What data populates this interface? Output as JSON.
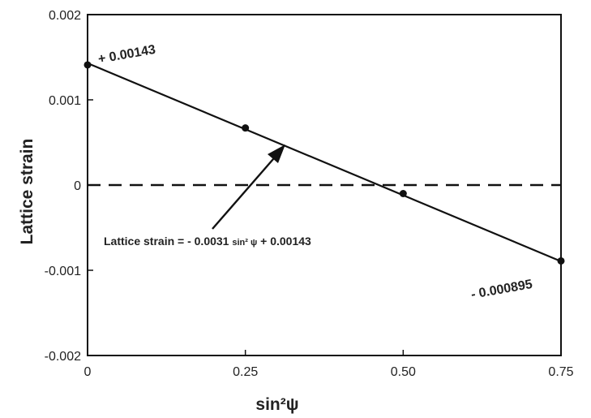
{
  "chart_data": {
    "type": "line",
    "xlabel": "sin²ψ",
    "ylabel": "Lattice strain",
    "xlim": [
      0,
      0.75
    ],
    "ylim": [
      -0.002,
      0.002
    ],
    "x_ticks": [
      "0",
      "0.25",
      "0.50",
      "0.75"
    ],
    "y_ticks": [
      "0.002",
      "0.001",
      "0",
      "-0.001",
      "-0.002"
    ],
    "grid": false,
    "series": [
      {
        "x": [
          0,
          0.25,
          0.5,
          0.75
        ],
        "y": [
          0.00141,
          0.00067,
          -0.0001,
          -0.00089
        ]
      }
    ],
    "fit_line": {
      "slope": -0.0031,
      "intercept": 0.00143,
      "x_range": [
        0,
        0.75
      ]
    },
    "reference_line": {
      "y": 0,
      "style": "dashed"
    },
    "annotations": {
      "start_value": "+ 0.00143",
      "end_value": "- 0.000895",
      "equation_prefix": "Lattice strain = - 0.0031 ",
      "equation_sin": "sin² ψ",
      "equation_suffix": " + 0.00143"
    },
    "colors": {
      "line": "#111111",
      "marker": "#111111",
      "text": "#222222"
    }
  }
}
